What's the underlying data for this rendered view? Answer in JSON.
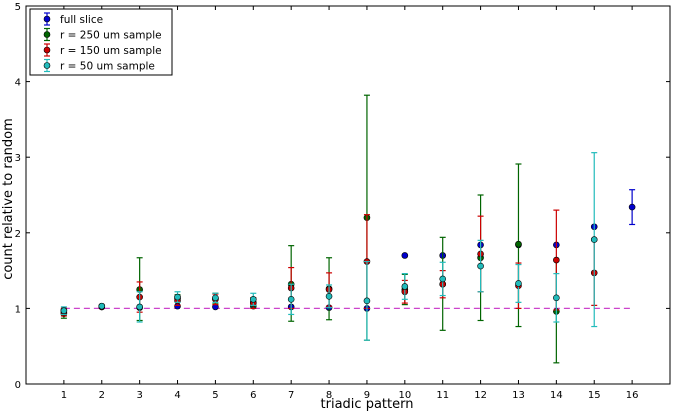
{
  "chart_data": {
    "type": "scatter",
    "title": "",
    "xlabel": "triadic pattern",
    "ylabel": "count relative to random",
    "x_ticks": [
      1,
      2,
      3,
      4,
      5,
      6,
      7,
      8,
      9,
      10,
      11,
      12,
      13,
      14,
      15,
      16
    ],
    "y_ticks": [
      0,
      1,
      2,
      3,
      4,
      5
    ],
    "xlim": [
      0,
      17
    ],
    "ylim": [
      0,
      5
    ],
    "grid": false,
    "legend_position": "top-left",
    "reference_line": {
      "y": 1,
      "style": "dashed",
      "color": "#cc44cc"
    },
    "series": [
      {
        "name": "full slice",
        "color": "#0000cc",
        "points": [
          {
            "x": 1,
            "y": 0.98,
            "lo": 0.96,
            "hi": 1.0
          },
          {
            "x": 2,
            "y": 1.03,
            "lo": 1.02,
            "hi": 1.04
          },
          {
            "x": 3,
            "y": 1.01,
            "lo": 1.0,
            "hi": 1.02
          },
          {
            "x": 4,
            "y": 1.03,
            "lo": 1.02,
            "hi": 1.04
          },
          {
            "x": 5,
            "y": 1.02,
            "lo": 1.01,
            "hi": 1.03
          },
          {
            "x": 6,
            "y": 1.03,
            "lo": 1.02,
            "hi": 1.04
          },
          {
            "x": 7,
            "y": 1.02,
            "lo": 1.01,
            "hi": 1.03
          },
          {
            "x": 8,
            "y": 1.01,
            "lo": 1.0,
            "hi": 1.02
          },
          {
            "x": 9,
            "y": 1.0,
            "lo": 0.99,
            "hi": 1.01
          },
          {
            "x": 10,
            "y": 1.7,
            "lo": 1.69,
            "hi": 1.71
          },
          {
            "x": 11,
            "y": 1.7,
            "lo": 1.69,
            "hi": 1.71
          },
          {
            "x": 12,
            "y": 1.84,
            "lo": 1.83,
            "hi": 1.85
          },
          {
            "x": 13,
            "y": 1.84,
            "lo": 1.83,
            "hi": 1.85
          },
          {
            "x": 14,
            "y": 1.84,
            "lo": 1.83,
            "hi": 1.85
          },
          {
            "x": 15,
            "y": 2.08,
            "lo": 2.07,
            "hi": 2.09
          },
          {
            "x": 16,
            "y": 2.34,
            "lo": 2.11,
            "hi": 2.57
          }
        ]
      },
      {
        "name": "r = 250 um sample",
        "color": "#006400",
        "points": [
          {
            "x": 1,
            "y": 0.93,
            "lo": 0.87,
            "hi": 0.99
          },
          {
            "x": 2,
            "y": 1.02,
            "lo": 1.01,
            "hi": 1.03
          },
          {
            "x": 3,
            "y": 1.25,
            "lo": 0.84,
            "hi": 1.67
          },
          {
            "x": 4,
            "y": 1.13,
            "lo": 1.08,
            "hi": 1.18
          },
          {
            "x": 5,
            "y": 1.13,
            "lo": 1.06,
            "hi": 1.2
          },
          {
            "x": 6,
            "y": 1.08,
            "lo": 1.02,
            "hi": 1.14
          },
          {
            "x": 7,
            "y": 1.32,
            "lo": 0.83,
            "hi": 1.83
          },
          {
            "x": 8,
            "y": 1.26,
            "lo": 0.85,
            "hi": 1.67
          },
          {
            "x": 9,
            "y": 2.2,
            "lo": 0.58,
            "hi": 3.82
          },
          {
            "x": 10,
            "y": 1.25,
            "lo": 1.05,
            "hi": 1.45
          },
          {
            "x": 11,
            "y": 1.32,
            "lo": 0.71,
            "hi": 1.94
          },
          {
            "x": 12,
            "y": 1.67,
            "lo": 0.84,
            "hi": 2.5
          },
          {
            "x": 13,
            "y": 1.85,
            "lo": 0.76,
            "hi": 2.91
          },
          {
            "x": 14,
            "y": 0.96,
            "lo": 0.28,
            "hi": 1.64
          }
        ]
      },
      {
        "name": "r = 150 um sample",
        "color": "#cc0000",
        "points": [
          {
            "x": 1,
            "y": 0.95,
            "lo": 0.9,
            "hi": 1.0
          },
          {
            "x": 2,
            "y": 1.02,
            "lo": 1.01,
            "hi": 1.03
          },
          {
            "x": 3,
            "y": 1.15,
            "lo": 0.95,
            "hi": 1.35
          },
          {
            "x": 4,
            "y": 1.1,
            "lo": 1.04,
            "hi": 1.16
          },
          {
            "x": 5,
            "y": 1.12,
            "lo": 1.05,
            "hi": 1.19
          },
          {
            "x": 6,
            "y": 1.07,
            "lo": 1.0,
            "hi": 1.14
          },
          {
            "x": 7,
            "y": 1.27,
            "lo": 1.0,
            "hi": 1.54
          },
          {
            "x": 8,
            "y": 1.25,
            "lo": 1.03,
            "hi": 1.47
          },
          {
            "x": 9,
            "y": 1.62,
            "lo": 1.0,
            "hi": 2.24
          },
          {
            "x": 10,
            "y": 1.22,
            "lo": 1.07,
            "hi": 1.37
          },
          {
            "x": 11,
            "y": 1.32,
            "lo": 1.14,
            "hi": 1.5
          },
          {
            "x": 12,
            "y": 1.72,
            "lo": 1.22,
            "hi": 2.22
          },
          {
            "x": 13,
            "y": 1.3,
            "lo": 1.0,
            "hi": 1.6
          },
          {
            "x": 14,
            "y": 1.64,
            "lo": 0.98,
            "hi": 2.3
          },
          {
            "x": 15,
            "y": 1.47,
            "lo": 1.04,
            "hi": 1.9
          }
        ]
      },
      {
        "name": "r = 50 um sample",
        "color": "#22bbbb",
        "points": [
          {
            "x": 1,
            "y": 0.97,
            "lo": 0.92,
            "hi": 1.02
          },
          {
            "x": 2,
            "y": 1.03,
            "lo": 1.01,
            "hi": 1.05
          },
          {
            "x": 3,
            "y": 1.02,
            "lo": 0.82,
            "hi": 1.22
          },
          {
            "x": 4,
            "y": 1.15,
            "lo": 1.08,
            "hi": 1.22
          },
          {
            "x": 5,
            "y": 1.14,
            "lo": 1.08,
            "hi": 1.2
          },
          {
            "x": 6,
            "y": 1.12,
            "lo": 1.04,
            "hi": 1.2
          },
          {
            "x": 7,
            "y": 1.12,
            "lo": 0.92,
            "hi": 1.32
          },
          {
            "x": 8,
            "y": 1.16,
            "lo": 1.01,
            "hi": 1.31
          },
          {
            "x": 9,
            "y": 1.1,
            "lo": 0.58,
            "hi": 1.62
          },
          {
            "x": 10,
            "y": 1.29,
            "lo": 1.12,
            "hi": 1.46
          },
          {
            "x": 11,
            "y": 1.39,
            "lo": 1.17,
            "hi": 1.61
          },
          {
            "x": 12,
            "y": 1.56,
            "lo": 1.22,
            "hi": 1.9
          },
          {
            "x": 13,
            "y": 1.33,
            "lo": 1.08,
            "hi": 1.58
          },
          {
            "x": 14,
            "y": 1.14,
            "lo": 0.82,
            "hi": 1.46
          },
          {
            "x": 15,
            "y": 1.91,
            "lo": 0.76,
            "hi": 3.06
          }
        ]
      }
    ]
  }
}
